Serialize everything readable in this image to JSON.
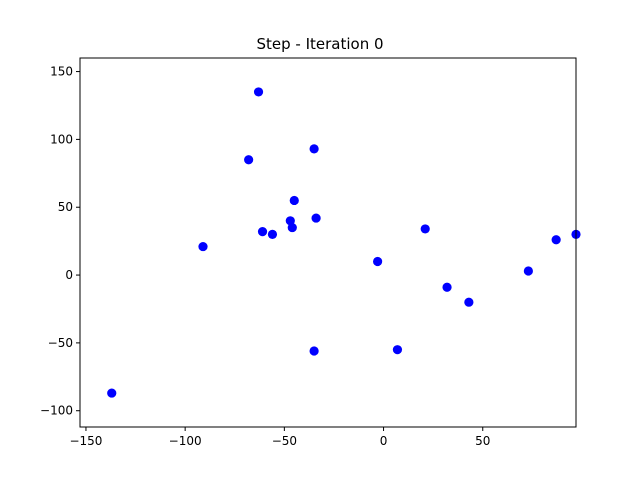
{
  "chart_data": {
    "type": "scatter",
    "title": "Step - Iteration 0",
    "xlabel": "",
    "ylabel": "",
    "xlim": [
      -153,
      97
    ],
    "ylim": [
      -112,
      160
    ],
    "xticks": [
      -150,
      -100,
      -50,
      0,
      50
    ],
    "yticks": [
      -100,
      -50,
      0,
      50,
      100,
      150
    ],
    "grid": false,
    "point_color": "#0000ff",
    "points": [
      {
        "x": -137,
        "y": -87
      },
      {
        "x": -91,
        "y": 21
      },
      {
        "x": -68,
        "y": 85
      },
      {
        "x": -63,
        "y": 135
      },
      {
        "x": -61,
        "y": 32
      },
      {
        "x": -56,
        "y": 30
      },
      {
        "x": -47,
        "y": 40
      },
      {
        "x": -46,
        "y": 35
      },
      {
        "x": -45,
        "y": 55
      },
      {
        "x": -35,
        "y": 93
      },
      {
        "x": -34,
        "y": 42
      },
      {
        "x": -35,
        "y": -56
      },
      {
        "x": -3,
        "y": 10
      },
      {
        "x": 7,
        "y": -55
      },
      {
        "x": 21,
        "y": 34
      },
      {
        "x": 32,
        "y": -9
      },
      {
        "x": 43,
        "y": -20
      },
      {
        "x": 73,
        "y": 3
      },
      {
        "x": 87,
        "y": 26
      },
      {
        "x": 97,
        "y": 30
      }
    ]
  }
}
